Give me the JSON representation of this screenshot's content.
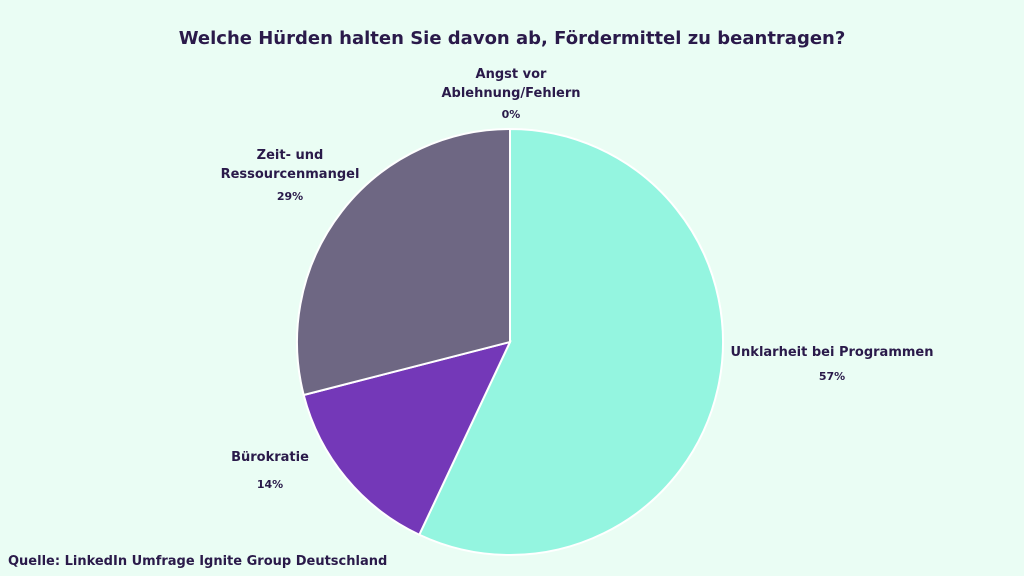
{
  "chart_data": {
    "type": "pie",
    "title": "Welche Hürden halten Sie davon ab, Fördermittel zu beantragen?",
    "categories": [
      "Angst vor Ablehnung/Fehlern",
      "Unklarheit bei Programmen",
      "Bürokratie",
      "Zeit- und Ressourcenmangel"
    ],
    "values": [
      0,
      57,
      14,
      29
    ],
    "value_labels": [
      "0%",
      "57%",
      "14%",
      "29%"
    ],
    "colors": [
      "#c9b8f0",
      "#94f5e0",
      "#7438b8",
      "#6e6783"
    ],
    "source": "Quelle: LinkedIn Umfrage Ignite Group Deutschland"
  }
}
